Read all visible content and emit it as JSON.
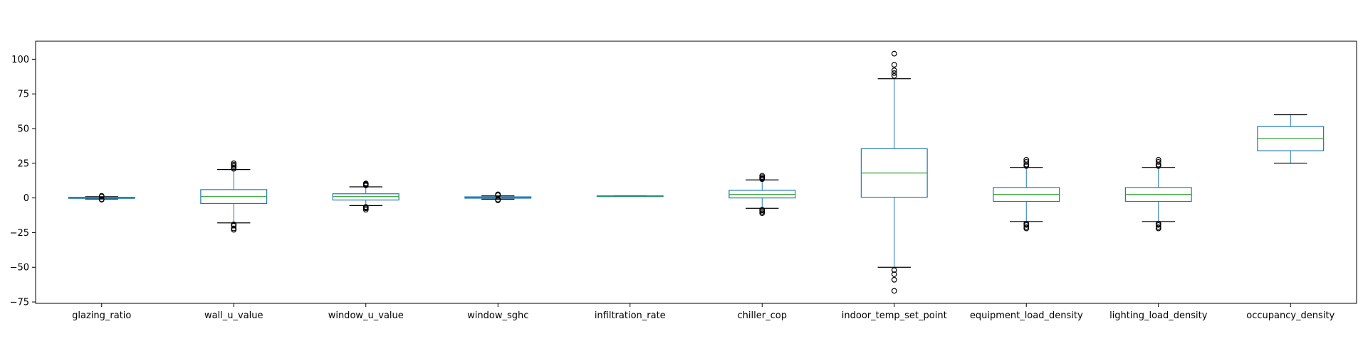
{
  "chart_data": {
    "type": "box",
    "title": "",
    "xlabel": "",
    "ylabel": "",
    "ylim": [
      -76,
      113
    ],
    "yticks": [
      100,
      75,
      50,
      25,
      0,
      -25,
      -50,
      -75
    ],
    "ytick_labels": [
      "100",
      "75",
      "50",
      "25",
      "0",
      "−25",
      "−50",
      "−75"
    ],
    "grid": false,
    "colors": {
      "box": "#1f77b4",
      "median": "#2ca02c",
      "whisker_cap": "#000000",
      "flier": "#000000"
    },
    "categories": [
      {
        "label": "glazing_ratio",
        "whislo": -0.8,
        "q1": -0.3,
        "med": 0.1,
        "q3": 0.5,
        "whishi": 0.9,
        "fliers": [
          -1.3,
          -1.0,
          1.1,
          1.5
        ]
      },
      {
        "label": "wall_u_value",
        "whislo": -18,
        "q1": -4,
        "med": 1,
        "q3": 6,
        "whishi": 20.5,
        "fliers": [
          -23,
          -22,
          -20,
          -19,
          21,
          22,
          23,
          24,
          25
        ]
      },
      {
        "label": "window_u_value",
        "whislo": -5.5,
        "q1": -1.5,
        "med": 1,
        "q3": 3,
        "whishi": 8,
        "fliers": [
          -8.5,
          -7.5,
          -7,
          -6.5,
          9,
          9.5,
          10,
          10.5
        ]
      },
      {
        "label": "window_sghc",
        "whislo": -0.9,
        "q1": -0.2,
        "med": 0.3,
        "q3": 0.8,
        "whishi": 1.5,
        "fliers": [
          -1.7,
          -1.2,
          2,
          2.6
        ]
      },
      {
        "label": "infiltration_rate",
        "whislo": 1.2,
        "q1": 1.3,
        "med": 1.4,
        "q3": 1.5,
        "whishi": 1.6,
        "fliers": []
      },
      {
        "label": "chiller_cop",
        "whislo": -7.5,
        "q1": 0,
        "med": 2.5,
        "q3": 5.5,
        "whishi": 13,
        "fliers": [
          -11,
          -10,
          -9,
          -8.5,
          13.5,
          14,
          15,
          16
        ]
      },
      {
        "label": "indoor_temp_set_point",
        "whislo": -50,
        "q1": 0.5,
        "med": 18,
        "q3": 35.5,
        "whishi": 86,
        "fliers": [
          -67,
          -59,
          -55,
          -52,
          88,
          90,
          92,
          96,
          104
        ]
      },
      {
        "label": "equipment_load_density",
        "whislo": -17,
        "q1": -2.5,
        "med": 2.5,
        "q3": 7.5,
        "whishi": 22,
        "fliers": [
          -22,
          -21,
          -19.5,
          -18.5,
          23,
          24,
          26,
          27.5
        ]
      },
      {
        "label": "lighting_load_density",
        "whislo": -17,
        "q1": -2.5,
        "med": 2.5,
        "q3": 7.5,
        "whishi": 22,
        "fliers": [
          -22,
          -21,
          -19.5,
          -18.5,
          23,
          24,
          26,
          27.5
        ]
      },
      {
        "label": "occupancy_density",
        "whislo": 25,
        "q1": 34,
        "med": 43,
        "q3": 51.5,
        "whishi": 60,
        "fliers": []
      }
    ]
  }
}
